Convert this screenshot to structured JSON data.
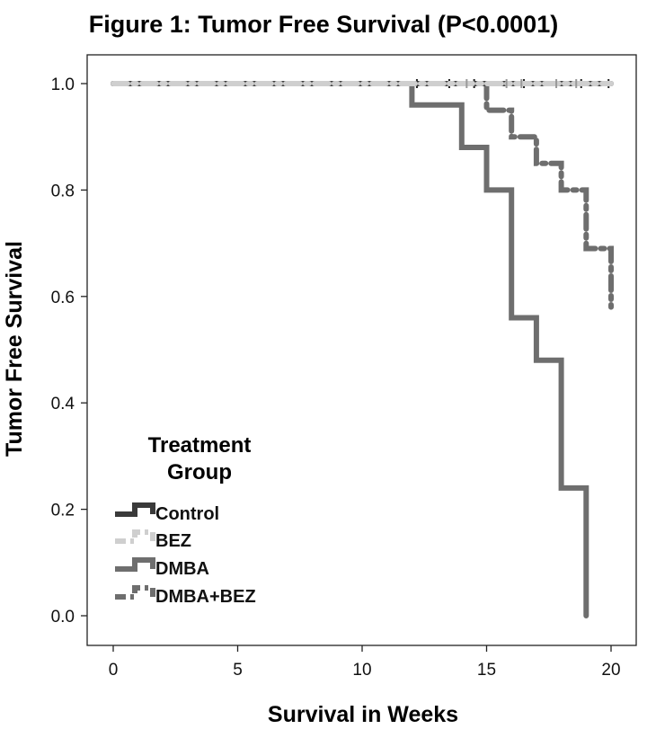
{
  "chart_data": {
    "type": "line",
    "title": "Figure 1: Tumor Free Survival (P<0.0001)",
    "xlabel": "Survival in Weeks",
    "ylabel": "Tumor Free Survival",
    "xlim": [
      0,
      20
    ],
    "ylim": [
      0,
      1.0
    ],
    "x_ticks": [
      0,
      5,
      10,
      15,
      20
    ],
    "x_tick_labels": [
      "0",
      "5",
      "10",
      "15",
      "20"
    ],
    "y_ticks": [
      0.0,
      0.2,
      0.4,
      0.6,
      0.8,
      1.0
    ],
    "y_tick_labels": [
      "0.0",
      "0.2",
      "0.4",
      "0.6",
      "0.8",
      "1.0"
    ],
    "grid": false,
    "legend": {
      "title": "Treatment Group",
      "title_lines": [
        "Treatment",
        "Group"
      ],
      "placement": "bottom-left"
    },
    "series": [
      {
        "name": "Control",
        "color": "#3a3a3a",
        "line_style": "solid",
        "x": [
          0,
          20
        ],
        "y": [
          1.0,
          1.0
        ],
        "censored_x": [
          12.2,
          13.5,
          14.5,
          16.5,
          18.8,
          19.9
        ]
      },
      {
        "name": "BEZ",
        "color": "#cfcfcf",
        "line_style": "dash-dot",
        "x": [
          0,
          20
        ],
        "y": [
          1.0,
          1.0
        ],
        "censored_x": [
          14.2,
          15.8,
          16.4,
          17.8,
          18.6
        ]
      },
      {
        "name": "DMBA",
        "color": "#6e6e6e",
        "line_style": "solid",
        "x": [
          0,
          12,
          12,
          14,
          14,
          15,
          15,
          16,
          16,
          17,
          17,
          18,
          18,
          19,
          19
        ],
        "y": [
          1.0,
          1.0,
          0.96,
          0.96,
          0.88,
          0.88,
          0.8,
          0.8,
          0.56,
          0.56,
          0.48,
          0.48,
          0.24,
          0.24,
          0.0
        ],
        "censored_x": []
      },
      {
        "name": "DMBA+BEZ",
        "color": "#6e6e6e",
        "line_style": "dash-dot",
        "x": [
          0,
          15,
          15,
          16,
          16,
          17,
          17,
          18,
          18,
          19,
          19,
          20,
          20
        ],
        "y": [
          1.0,
          1.0,
          0.95,
          0.95,
          0.9,
          0.9,
          0.85,
          0.85,
          0.8,
          0.8,
          0.69,
          0.69,
          0.58
        ],
        "censored_x": []
      }
    ]
  }
}
